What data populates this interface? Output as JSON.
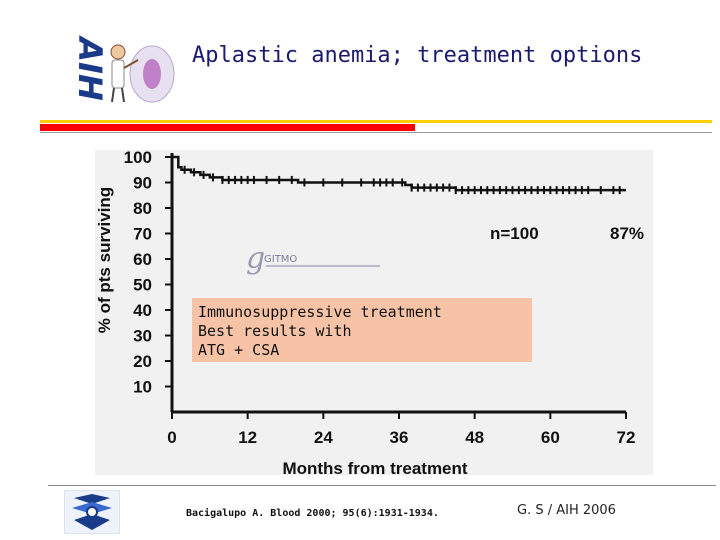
{
  "slide": {
    "logo_text": "AIH",
    "title": "Aplastic anemia; treatment options",
    "citation": "Bacigalupo A. Blood 2000; 95(6):1931-1934.",
    "author": "G. S / AIH 2006"
  },
  "colors": {
    "title": "#1a1a6e",
    "rule_red": "#ff0000",
    "rule_yellow": "#ffcc00",
    "annotation_bg": "#f7c3a6",
    "logo_blue": "#1a3a8a"
  },
  "icons": [
    "doctor-cell-icon",
    "institution-logo-icon",
    "gitmo-logo-icon"
  ],
  "annotation": {
    "lines": [
      "Immunosuppressive treatment",
      "Best results with",
      "ATG + CSA"
    ]
  },
  "chart_data": {
    "type": "line",
    "step": true,
    "title": "",
    "xlabel": "Months from treatment",
    "ylabel": "% of pts surviving",
    "xlim": [
      0,
      72
    ],
    "ylim": [
      0,
      100
    ],
    "xticks": [
      0,
      12,
      24,
      36,
      48,
      60,
      72
    ],
    "yticks": [
      10,
      20,
      30,
      40,
      50,
      60,
      70,
      80,
      90,
      100
    ],
    "grid": false,
    "annotations": [
      {
        "text": "n=100"
      },
      {
        "text": "87%"
      }
    ],
    "logo_text": "GITMO",
    "x": [
      0,
      1,
      1.5,
      3,
      4.5,
      6,
      8,
      15,
      20,
      31,
      37,
      38,
      44,
      45,
      72
    ],
    "y": [
      100,
      96,
      95,
      94,
      93,
      92,
      91,
      91,
      90,
      90,
      89,
      88,
      88,
      87,
      87
    ],
    "censor_ticks": [
      2,
      3.5,
      5,
      6.5,
      8,
      9,
      10,
      11,
      12,
      13,
      15,
      17,
      19,
      21,
      24,
      27,
      30,
      32,
      33,
      34,
      35,
      36.5,
      38,
      39,
      40,
      41,
      42,
      43,
      44,
      45,
      46,
      47,
      48,
      49,
      50,
      51,
      52,
      53,
      54,
      55,
      56,
      57,
      58,
      59,
      60,
      61,
      62,
      63,
      64,
      65,
      66,
      68,
      70,
      71
    ]
  }
}
